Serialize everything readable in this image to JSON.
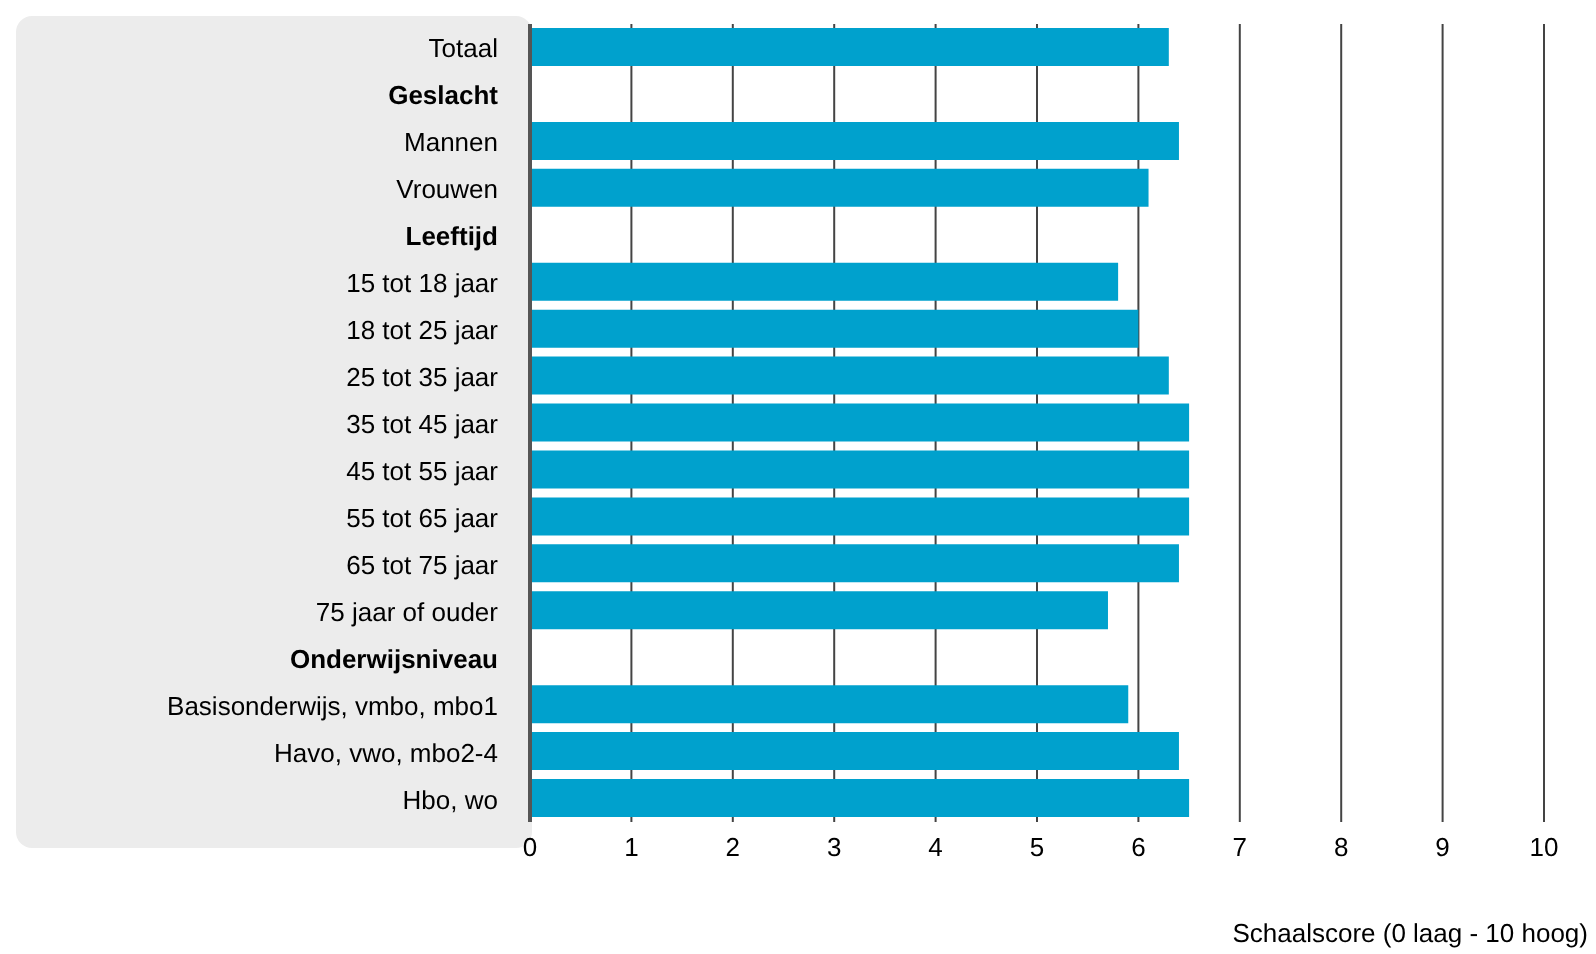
{
  "chart_data": {
    "type": "bar",
    "orientation": "horizontal",
    "xlabel": "Schaalscore (0 laag - 10 hoog)",
    "categories": [
      "Totaal",
      "Geslacht",
      "Mannen",
      "Vrouwen",
      "Leeftijd",
      "15 tot 18 jaar",
      "18 tot 25 jaar",
      "25 tot 35 jaar",
      "35 tot 45 jaar",
      "45 tot 55 jaar",
      "55 tot 65 jaar",
      "65 tot 75 jaar",
      "75 jaar of ouder",
      "Onderwijsniveau",
      "Basisonderwijs, vmbo, mbo1",
      "Havo, vwo, mbo2-4",
      "Hbo, wo"
    ],
    "values": [
      6.3,
      null,
      6.4,
      6.1,
      null,
      5.8,
      6.0,
      6.3,
      6.5,
      6.5,
      6.5,
      6.4,
      5.7,
      null,
      5.9,
      6.4,
      6.5
    ],
    "color": "#00a1cd",
    "xlim": [
      0,
      10
    ],
    "xticks": [
      0,
      1,
      2,
      3,
      4,
      5,
      6,
      7,
      8,
      9,
      10
    ],
    "grid": "x",
    "legend": false
  }
}
